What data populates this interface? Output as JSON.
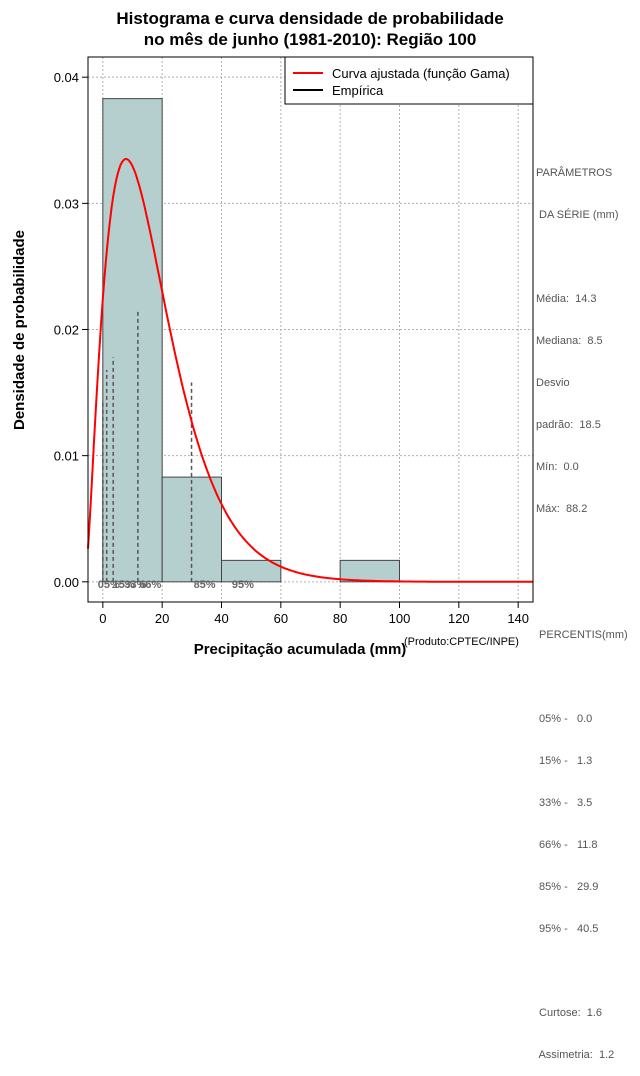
{
  "chart_data": {
    "type": "bar",
    "title_line1": "Histograma e curva densidade de probabilidade",
    "title_line2": "no mês de junho (1981-2010): Região 100",
    "xlabel": "Precipitação acumulada (mm)",
    "ylabel": "Densidade de probabilidade",
    "xlim": [
      -5,
      145
    ],
    "ylim": [
      -0.0016,
      0.0416
    ],
    "xticks": [
      0,
      20,
      40,
      60,
      80,
      100,
      120,
      140
    ],
    "yticks": [
      0.0,
      0.01,
      0.02,
      0.03,
      0.04
    ],
    "ytick_labels": [
      "0.00",
      "0.01",
      "0.02",
      "0.03",
      "0.04"
    ],
    "grid": true,
    "legend": [
      "Curva ajustada (função Gama)",
      "Empírica"
    ],
    "legend_position": "top-right",
    "histogram": {
      "bin_edges": [
        0,
        20,
        40,
        60,
        80,
        100
      ],
      "density": [
        0.0383,
        0.0083,
        0.0017,
        0.0,
        0.0017
      ],
      "color": "#b5cfce"
    },
    "gamma_curve": {
      "shape": 2.5,
      "scale": 9.2,
      "x_range": [
        -5,
        145
      ],
      "color": "#ff0000"
    },
    "percentile_lines": [
      {
        "label": "05%",
        "x": 0.0,
        "height": 0.0143
      },
      {
        "label": "15%",
        "x": 1.3,
        "height": 0.0168
      },
      {
        "label": "33%",
        "x": 3.5,
        "height": 0.0178
      },
      {
        "label": "66%",
        "x": 11.8,
        "height": 0.0215
      },
      {
        "label": "85%",
        "x": 29.9,
        "height": 0.0158
      },
      {
        "label": "95%",
        "x": 40.5,
        "height": 0.0
      }
    ],
    "percentile_labels": [
      {
        "text": "05%",
        "x": 2
      },
      {
        "text": "15%",
        "x": 7
      },
      {
        "text": "33%",
        "x": 11
      },
      {
        "text": "66%",
        "x": 16
      },
      {
        "text": "85%",
        "x": 34.3
      },
      {
        "text": "95%",
        "x": 47.2
      }
    ]
  },
  "sidebar": {
    "parametros_title1": "PARÂMETROS",
    "parametros_title2": " DA SÉRIE (mm)",
    "media": "Média:  14.3",
    "mediana": "Mediana:  8.5",
    "desvio1": "Desvio",
    "desvio2": "padrão:  18.5",
    "min": "Mín:  0.0",
    "max": "Máx:  88.2",
    "percentis_title": " PERCENTIS(mm)",
    "p05": " 05% -   0.0",
    "p15": " 15% -   1.3",
    "p33": " 33% -   3.5",
    "p66": " 66% -   11.8",
    "p85": " 85% -   29.9",
    "p95": " 95% -   40.5",
    "curtose": " Curtose:  1.6",
    "assimetria": " Assimetria:  1.2"
  },
  "credit": "(Produto:CPTEC/INPE)"
}
